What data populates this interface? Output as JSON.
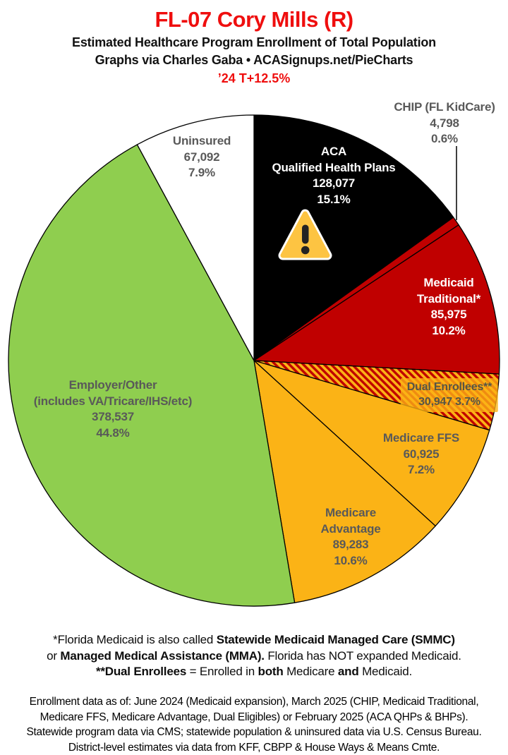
{
  "header": {
    "title": "FL-07 Cory Mills (R)",
    "subtitle1": "Estimated Healthcare Program Enrollment of Total Population",
    "subtitle2": "Graphs via Charles Gaba   •   ACASignups.net/PieCharts",
    "trend": "’24 T+12.5%",
    "title_color": "#EF0E0E",
    "trend_color": "#EF0E0E"
  },
  "chart_data": {
    "type": "pie",
    "title": "Estimated Healthcare Program Enrollment of Total Population",
    "start_angle_deg": 0,
    "direction": "clockwise",
    "legend_position": "on-slice-labels",
    "slices": [
      {
        "id": "aca",
        "label": "ACA Qualified Health Plans",
        "value": 128077,
        "pct": 15.1,
        "color": "#000000"
      },
      {
        "id": "chip",
        "label": "CHIP (FL KidCare)",
        "value": 4798,
        "pct": 0.6,
        "color": "#C00000"
      },
      {
        "id": "medicaid",
        "label": "Medicaid Traditional*",
        "value": 85975,
        "pct": 10.2,
        "color": "#C00000"
      },
      {
        "id": "dual",
        "label": "Dual Enrollees**",
        "value": 30947,
        "pct": 3.7,
        "color": "hatch"
      },
      {
        "id": "ffs",
        "label": "Medicare FFS",
        "value": 60925,
        "pct": 7.2,
        "color": "#FBB316"
      },
      {
        "id": "madv",
        "label": "Medicare Advantage",
        "value": 89283,
        "pct": 10.6,
        "color": "#FBB316"
      },
      {
        "id": "employer",
        "label": "Employer/Other (includes VA/Tricare/IHS/etc)",
        "value": 378537,
        "pct": 44.8,
        "color": "#8FCE4F"
      },
      {
        "id": "uninsured",
        "label": "Uninsured",
        "value": 67092,
        "pct": 7.9,
        "color": "#FFFFFF"
      }
    ],
    "hatch_colors": [
      "#C00000",
      "#FBB316"
    ],
    "outline_color": "#000000"
  },
  "labels": {
    "chip": {
      "lines": [
        "CHIP (FL KidCare)",
        "4,798",
        "0.6%"
      ]
    },
    "aca": {
      "lines": [
        "ACA",
        "Qualified Health Plans",
        "128,077",
        "15.1%"
      ]
    },
    "medicaid": {
      "lines": [
        "Medicaid",
        "Traditional*",
        "85,975",
        "10.2%"
      ]
    },
    "dual": {
      "lines": [
        "Dual Enrollees**",
        "30,947 3.7%"
      ]
    },
    "ffs": {
      "lines": [
        "Medicare FFS",
        "60,925",
        "7.2%"
      ]
    },
    "madv": {
      "lines": [
        "Medicare",
        "Advantage",
        "89,283",
        "10.6%"
      ]
    },
    "employer": {
      "lines": [
        "Employer/Other",
        "(includes VA/Tricare/IHS/etc)",
        "378,537",
        "44.8%"
      ]
    },
    "uninsured": {
      "lines": [
        "Uninsured",
        "67,092",
        "7.9%"
      ]
    }
  },
  "icons": {
    "warning": "warning-triangle"
  },
  "footnotes": {
    "line1": [
      {
        "t": "*Florida Medicaid is also called ",
        "b": false
      },
      {
        "t": "Statewide Medicaid Managed Care (SMMC)",
        "b": true
      }
    ],
    "line2": [
      {
        "t": "or ",
        "b": false
      },
      {
        "t": "Managed Medical Assistance (MMA).",
        "b": true
      },
      {
        "t": " Florida has NOT expanded Medicaid.",
        "b": false
      }
    ],
    "line3": [
      {
        "t": "**Dual Enrollees",
        "b": true
      },
      {
        "t": " = Enrolled in ",
        "b": false
      },
      {
        "t": "both",
        "b": true
      },
      {
        "t": " Medicare ",
        "b": false
      },
      {
        "t": "and",
        "b": true
      },
      {
        "t": " Medicaid.",
        "b": false
      }
    ]
  },
  "source": {
    "lines": [
      "Enrollment data as of: June 2024 (Medicaid expansion), March 2025 (CHIP, Medicaid Traditional,",
      "Medicare FFS, Medicare Advantage, Dual Eligibles) or February 2025 (ACA QHPs & BHPs).",
      "Statewide program data via CMS; statewide population & uninsured data via U.S. Census Bureau.",
      "District-level estimates via data from KFF, CBPP & House Ways & Means Cmte."
    ]
  }
}
